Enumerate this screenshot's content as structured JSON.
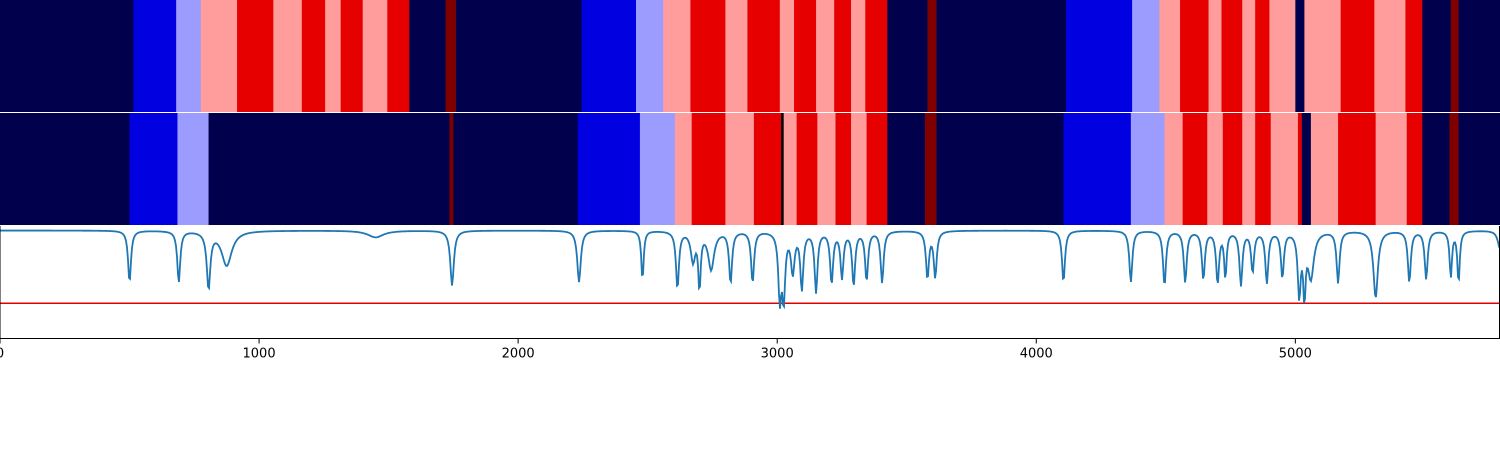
{
  "chart_data": [
    {
      "type": "heatmap",
      "title": "",
      "xlabel": "",
      "ylabel": "",
      "xlim": [
        0,
        5790
      ],
      "segments": [
        {
          "start": 0,
          "end": 515,
          "color": "#00004c"
        },
        {
          "start": 515,
          "end": 680,
          "color": "#0000e0"
        },
        {
          "start": 680,
          "end": 775,
          "color": "#9c9cff"
        },
        {
          "start": 775,
          "end": 915,
          "color": "#ff9c9c"
        },
        {
          "start": 915,
          "end": 1055,
          "color": "#e60000"
        },
        {
          "start": 1055,
          "end": 1165,
          "color": "#ff9c9c"
        },
        {
          "start": 1165,
          "end": 1255,
          "color": "#e60000"
        },
        {
          "start": 1255,
          "end": 1315,
          "color": "#ff9c9c"
        },
        {
          "start": 1315,
          "end": 1400,
          "color": "#e60000"
        },
        {
          "start": 1400,
          "end": 1495,
          "color": "#ff9c9c"
        },
        {
          "start": 1495,
          "end": 1580,
          "color": "#e60000"
        },
        {
          "start": 1580,
          "end": 1720,
          "color": "#00004c"
        },
        {
          "start": 1720,
          "end": 1760,
          "color": "#800000"
        },
        {
          "start": 1760,
          "end": 2245,
          "color": "#00004c"
        },
        {
          "start": 2245,
          "end": 2455,
          "color": "#0000e0"
        },
        {
          "start": 2455,
          "end": 2560,
          "color": "#9c9cff"
        },
        {
          "start": 2560,
          "end": 2665,
          "color": "#ff9c9c"
        },
        {
          "start": 2665,
          "end": 2800,
          "color": "#e60000"
        },
        {
          "start": 2800,
          "end": 2885,
          "color": "#ff9c9c"
        },
        {
          "start": 2885,
          "end": 3010,
          "color": "#e60000"
        },
        {
          "start": 3010,
          "end": 3065,
          "color": "#ff9c9c"
        },
        {
          "start": 3065,
          "end": 3150,
          "color": "#e60000"
        },
        {
          "start": 3150,
          "end": 3220,
          "color": "#ff9c9c"
        },
        {
          "start": 3220,
          "end": 3285,
          "color": "#e60000"
        },
        {
          "start": 3285,
          "end": 3340,
          "color": "#ff9c9c"
        },
        {
          "start": 3340,
          "end": 3425,
          "color": "#e60000"
        },
        {
          "start": 3425,
          "end": 3580,
          "color": "#00004c"
        },
        {
          "start": 3580,
          "end": 3615,
          "color": "#800000"
        },
        {
          "start": 3615,
          "end": 4115,
          "color": "#00004c"
        },
        {
          "start": 4115,
          "end": 4370,
          "color": "#0000e0"
        },
        {
          "start": 4370,
          "end": 4475,
          "color": "#9c9cff"
        },
        {
          "start": 4475,
          "end": 4555,
          "color": "#ff9c9c"
        },
        {
          "start": 4555,
          "end": 4665,
          "color": "#e60000"
        },
        {
          "start": 4665,
          "end": 4715,
          "color": "#ff9c9c"
        },
        {
          "start": 4715,
          "end": 4795,
          "color": "#e60000"
        },
        {
          "start": 4795,
          "end": 4845,
          "color": "#ff9c9c"
        },
        {
          "start": 4845,
          "end": 4900,
          "color": "#e60000"
        },
        {
          "start": 4900,
          "end": 5000,
          "color": "#ff9c9c"
        },
        {
          "start": 5000,
          "end": 5035,
          "color": "#00004c"
        },
        {
          "start": 5035,
          "end": 5175,
          "color": "#ff9c9c"
        },
        {
          "start": 5175,
          "end": 5305,
          "color": "#e60000"
        },
        {
          "start": 5305,
          "end": 5425,
          "color": "#ff9c9c"
        },
        {
          "start": 5425,
          "end": 5490,
          "color": "#e60000"
        },
        {
          "start": 5490,
          "end": 5600,
          "color": "#00004c"
        },
        {
          "start": 5600,
          "end": 5630,
          "color": "#800000"
        },
        {
          "start": 5630,
          "end": 5790,
          "color": "#00004c"
        }
      ]
    },
    {
      "type": "heatmap",
      "title": "",
      "xlabel": "",
      "ylabel": "",
      "xlim": [
        0,
        5790
      ],
      "segments": [
        {
          "start": 0,
          "end": 500,
          "color": "#00004c"
        },
        {
          "start": 500,
          "end": 685,
          "color": "#0000e0"
        },
        {
          "start": 685,
          "end": 805,
          "color": "#9c9cff"
        },
        {
          "start": 805,
          "end": 1735,
          "color": "#00004c"
        },
        {
          "start": 1735,
          "end": 1750,
          "color": "#800000"
        },
        {
          "start": 1750,
          "end": 2230,
          "color": "#00004c"
        },
        {
          "start": 2230,
          "end": 2470,
          "color": "#0000e0"
        },
        {
          "start": 2470,
          "end": 2605,
          "color": "#9c9cff"
        },
        {
          "start": 2605,
          "end": 2670,
          "color": "#ff9c9c"
        },
        {
          "start": 2670,
          "end": 2800,
          "color": "#e60000"
        },
        {
          "start": 2800,
          "end": 2910,
          "color": "#ff9c9c"
        },
        {
          "start": 2910,
          "end": 3015,
          "color": "#e60000"
        },
        {
          "start": 3015,
          "end": 3025,
          "color": "#000000"
        },
        {
          "start": 3025,
          "end": 3075,
          "color": "#ff9c9c"
        },
        {
          "start": 3075,
          "end": 3155,
          "color": "#e60000"
        },
        {
          "start": 3155,
          "end": 3225,
          "color": "#ff9c9c"
        },
        {
          "start": 3225,
          "end": 3285,
          "color": "#e60000"
        },
        {
          "start": 3285,
          "end": 3345,
          "color": "#ff9c9c"
        },
        {
          "start": 3345,
          "end": 3425,
          "color": "#e60000"
        },
        {
          "start": 3425,
          "end": 3570,
          "color": "#00004c"
        },
        {
          "start": 3570,
          "end": 3615,
          "color": "#800000"
        },
        {
          "start": 3615,
          "end": 4105,
          "color": "#00004c"
        },
        {
          "start": 4105,
          "end": 4365,
          "color": "#0000e0"
        },
        {
          "start": 4365,
          "end": 4495,
          "color": "#9c9cff"
        },
        {
          "start": 4495,
          "end": 4565,
          "color": "#ff9c9c"
        },
        {
          "start": 4565,
          "end": 4660,
          "color": "#e60000"
        },
        {
          "start": 4660,
          "end": 4720,
          "color": "#ff9c9c"
        },
        {
          "start": 4720,
          "end": 4795,
          "color": "#e60000"
        },
        {
          "start": 4795,
          "end": 4845,
          "color": "#ff9c9c"
        },
        {
          "start": 4845,
          "end": 4905,
          "color": "#e60000"
        },
        {
          "start": 4905,
          "end": 5010,
          "color": "#ff9c9c"
        },
        {
          "start": 5010,
          "end": 5025,
          "color": "#e60000"
        },
        {
          "start": 5025,
          "end": 5060,
          "color": "#00004c"
        },
        {
          "start": 5060,
          "end": 5165,
          "color": "#ff9c9c"
        },
        {
          "start": 5165,
          "end": 5310,
          "color": "#e60000"
        },
        {
          "start": 5310,
          "end": 5430,
          "color": "#ff9c9c"
        },
        {
          "start": 5430,
          "end": 5490,
          "color": "#e60000"
        },
        {
          "start": 5490,
          "end": 5595,
          "color": "#00004c"
        },
        {
          "start": 5595,
          "end": 5630,
          "color": "#800000"
        },
        {
          "start": 5630,
          "end": 5790,
          "color": "#00004c"
        }
      ]
    },
    {
      "type": "line",
      "title": "",
      "xlabel": "",
      "ylabel": "",
      "xlim": [
        0,
        5790
      ],
      "ylim": [
        0,
        1
      ],
      "grid": false,
      "xticks": [
        0,
        1000,
        2000,
        3000,
        4000,
        5000
      ],
      "xtick_labels": [
        "0",
        "1000",
        "2000",
        "3000",
        "4000",
        "5000"
      ],
      "line_color": "#1f77b4",
      "threshold": {
        "value": 0.31,
        "color": "#e00000"
      },
      "baseline": 0.96,
      "dips": [
        [
          500,
          0.5,
          10
        ],
        [
          690,
          0.5,
          10
        ],
        [
          805,
          0.46,
          12
        ],
        [
          875,
          0.65,
          35
        ],
        [
          1450,
          0.9,
          55
        ],
        [
          1745,
          0.47,
          12
        ],
        [
          2235,
          0.5,
          12
        ],
        [
          2480,
          0.52,
          8
        ],
        [
          2615,
          0.45,
          10
        ],
        [
          2675,
          0.7,
          15
        ],
        [
          2700,
          0.47,
          8
        ],
        [
          2745,
          0.62,
          20
        ],
        [
          2820,
          0.5,
          10
        ],
        [
          2905,
          0.5,
          10
        ],
        [
          3010,
          0.38,
          10
        ],
        [
          3025,
          0.38,
          10
        ],
        [
          3060,
          0.6,
          12
        ],
        [
          3095,
          0.45,
          10
        ],
        [
          3150,
          0.42,
          10
        ],
        [
          3210,
          0.5,
          10
        ],
        [
          3250,
          0.55,
          10
        ],
        [
          3295,
          0.48,
          10
        ],
        [
          3345,
          0.52,
          10
        ],
        [
          3405,
          0.5,
          10
        ],
        [
          3580,
          0.54,
          10
        ],
        [
          3610,
          0.55,
          10
        ],
        [
          4105,
          0.5,
          10
        ],
        [
          4365,
          0.5,
          10
        ],
        [
          4495,
          0.47,
          10
        ],
        [
          4575,
          0.5,
          10
        ],
        [
          4645,
          0.53,
          10
        ],
        [
          4700,
          0.5,
          10
        ],
        [
          4730,
          0.55,
          8
        ],
        [
          4790,
          0.48,
          10
        ],
        [
          4835,
          0.6,
          10
        ],
        [
          4890,
          0.5,
          10
        ],
        [
          4950,
          0.55,
          10
        ],
        [
          5015,
          0.4,
          10
        ],
        [
          5035,
          0.43,
          8
        ],
        [
          5060,
          0.55,
          20
        ],
        [
          5165,
          0.5,
          10
        ],
        [
          5310,
          0.36,
          15
        ],
        [
          5440,
          0.5,
          10
        ],
        [
          5505,
          0.53,
          10
        ],
        [
          5600,
          0.55,
          8
        ],
        [
          5630,
          0.5,
          8
        ],
        [
          5790,
          0.8,
          15
        ]
      ]
    }
  ]
}
